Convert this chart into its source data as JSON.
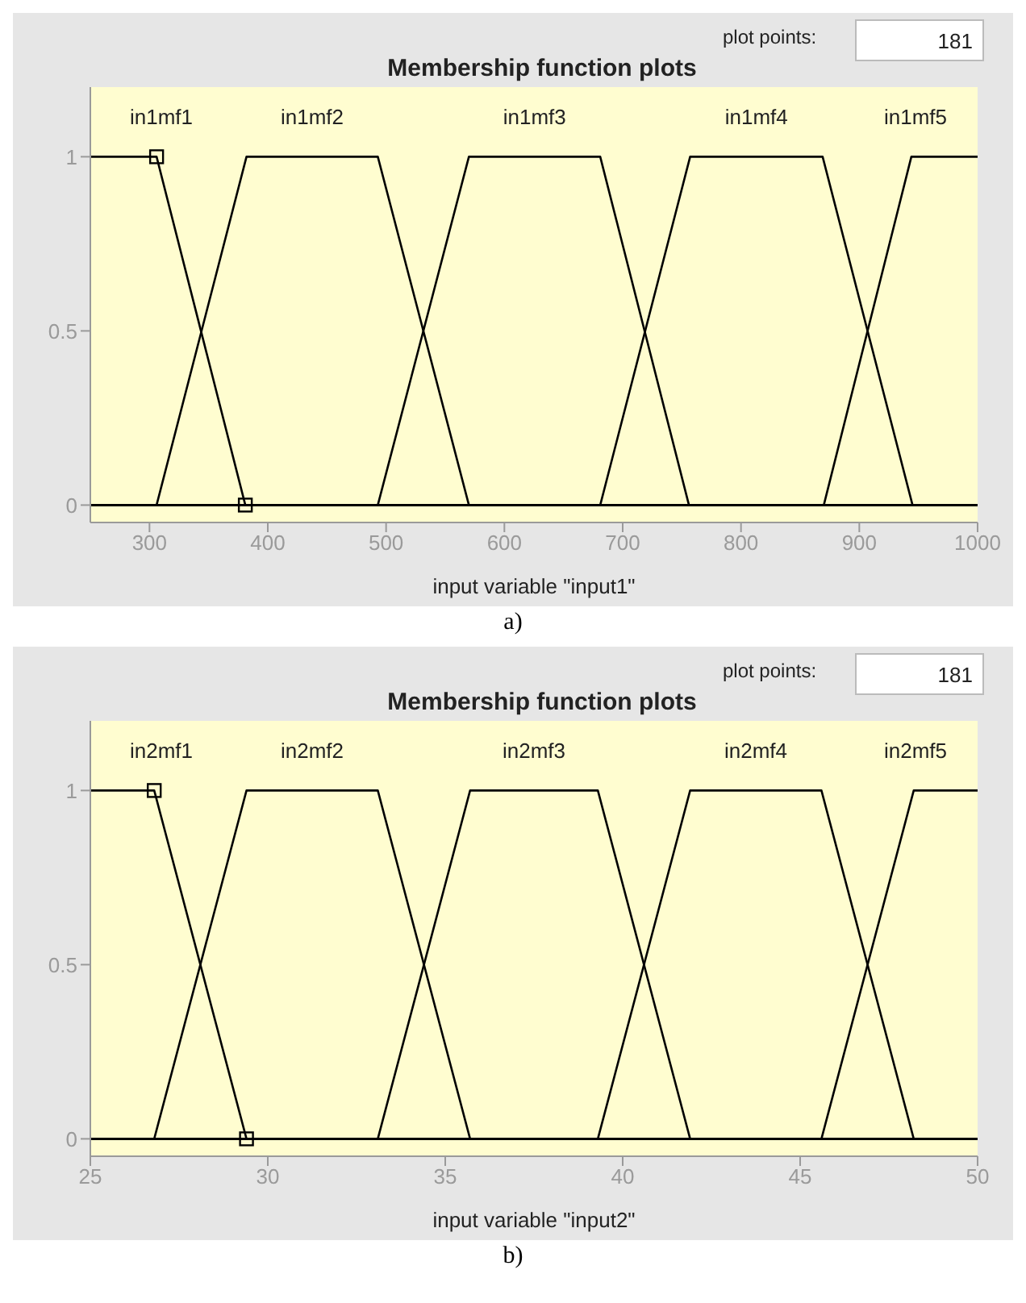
{
  "chart_data": [
    {
      "type": "line",
      "title": "Membership function plots",
      "xlabel": "input variable \"input1\"",
      "xlim": [
        250,
        1000
      ],
      "xticks": [
        300,
        400,
        500,
        600,
        700,
        800,
        900,
        1000
      ],
      "ylim": [
        -0.05,
        1.2
      ],
      "yticks": [
        0,
        0.5,
        1
      ],
      "annotations": [
        "plot points:",
        "181",
        "a)"
      ],
      "series": [
        {
          "name": "in1mf1",
          "color": "#000000",
          "x": [
            250,
            306,
            381,
            1000
          ],
          "values": [
            1,
            1,
            0,
            0
          ]
        },
        {
          "name": "in1mf2",
          "color": "#000000",
          "x": [
            250,
            306,
            382,
            493,
            570,
            1000
          ],
          "values": [
            0,
            0,
            1,
            1,
            0,
            0
          ]
        },
        {
          "name": "in1mf3",
          "color": "#000000",
          "x": [
            250,
            493,
            570,
            681,
            756,
            1000
          ],
          "values": [
            0,
            0,
            1,
            1,
            0,
            0
          ]
        },
        {
          "name": "in1mf4",
          "color": "#000000",
          "x": [
            250,
            681,
            757,
            869,
            945,
            1000
          ],
          "values": [
            0,
            0,
            1,
            1,
            0,
            0
          ]
        },
        {
          "name": "in1mf5",
          "color": "#000000",
          "x": [
            250,
            870,
            944,
            1000
          ],
          "values": [
            0,
            0,
            1,
            1
          ]
        },
        {
          "type": "scatter",
          "marker": "square",
          "color": "#000000",
          "x": [
            306,
            381
          ],
          "values": [
            1,
            0
          ]
        }
      ]
    },
    {
      "type": "line",
      "title": "Membership function plots",
      "xlabel": "input variable \"input2\"",
      "xlim": [
        25,
        50
      ],
      "xticks": [
        25,
        30,
        35,
        40,
        45,
        50
      ],
      "ylim": [
        -0.05,
        1.2
      ],
      "yticks": [
        0,
        0.5,
        1
      ],
      "annotations": [
        "plot points:",
        "181",
        "b)"
      ],
      "series": [
        {
          "name": "in2mf1",
          "color": "#000000",
          "x": [
            25,
            26.8,
            29.4,
            50
          ],
          "values": [
            1,
            1,
            0,
            0
          ]
        },
        {
          "name": "in2mf2",
          "color": "#000000",
          "x": [
            25,
            26.8,
            29.4,
            33.1,
            35.7,
            50
          ],
          "values": [
            0,
            0,
            1,
            1,
            0,
            0
          ]
        },
        {
          "name": "in2mf3",
          "color": "#000000",
          "x": [
            25,
            33.1,
            35.7,
            39.3,
            41.9,
            50
          ],
          "values": [
            0,
            0,
            1,
            1,
            0,
            0
          ]
        },
        {
          "name": "in2mf4",
          "color": "#000000",
          "x": [
            25,
            39.3,
            41.9,
            45.6,
            48.2,
            50
          ],
          "values": [
            0,
            0,
            1,
            1,
            0,
            0
          ]
        },
        {
          "name": "in2mf5",
          "color": "#000000",
          "x": [
            25,
            45.6,
            48.2,
            50
          ],
          "values": [
            0,
            0,
            1,
            1
          ]
        },
        {
          "type": "scatter",
          "marker": "square",
          "color": "#000000",
          "x": [
            26.8,
            29.4
          ],
          "values": [
            1,
            0
          ]
        }
      ]
    }
  ]
}
